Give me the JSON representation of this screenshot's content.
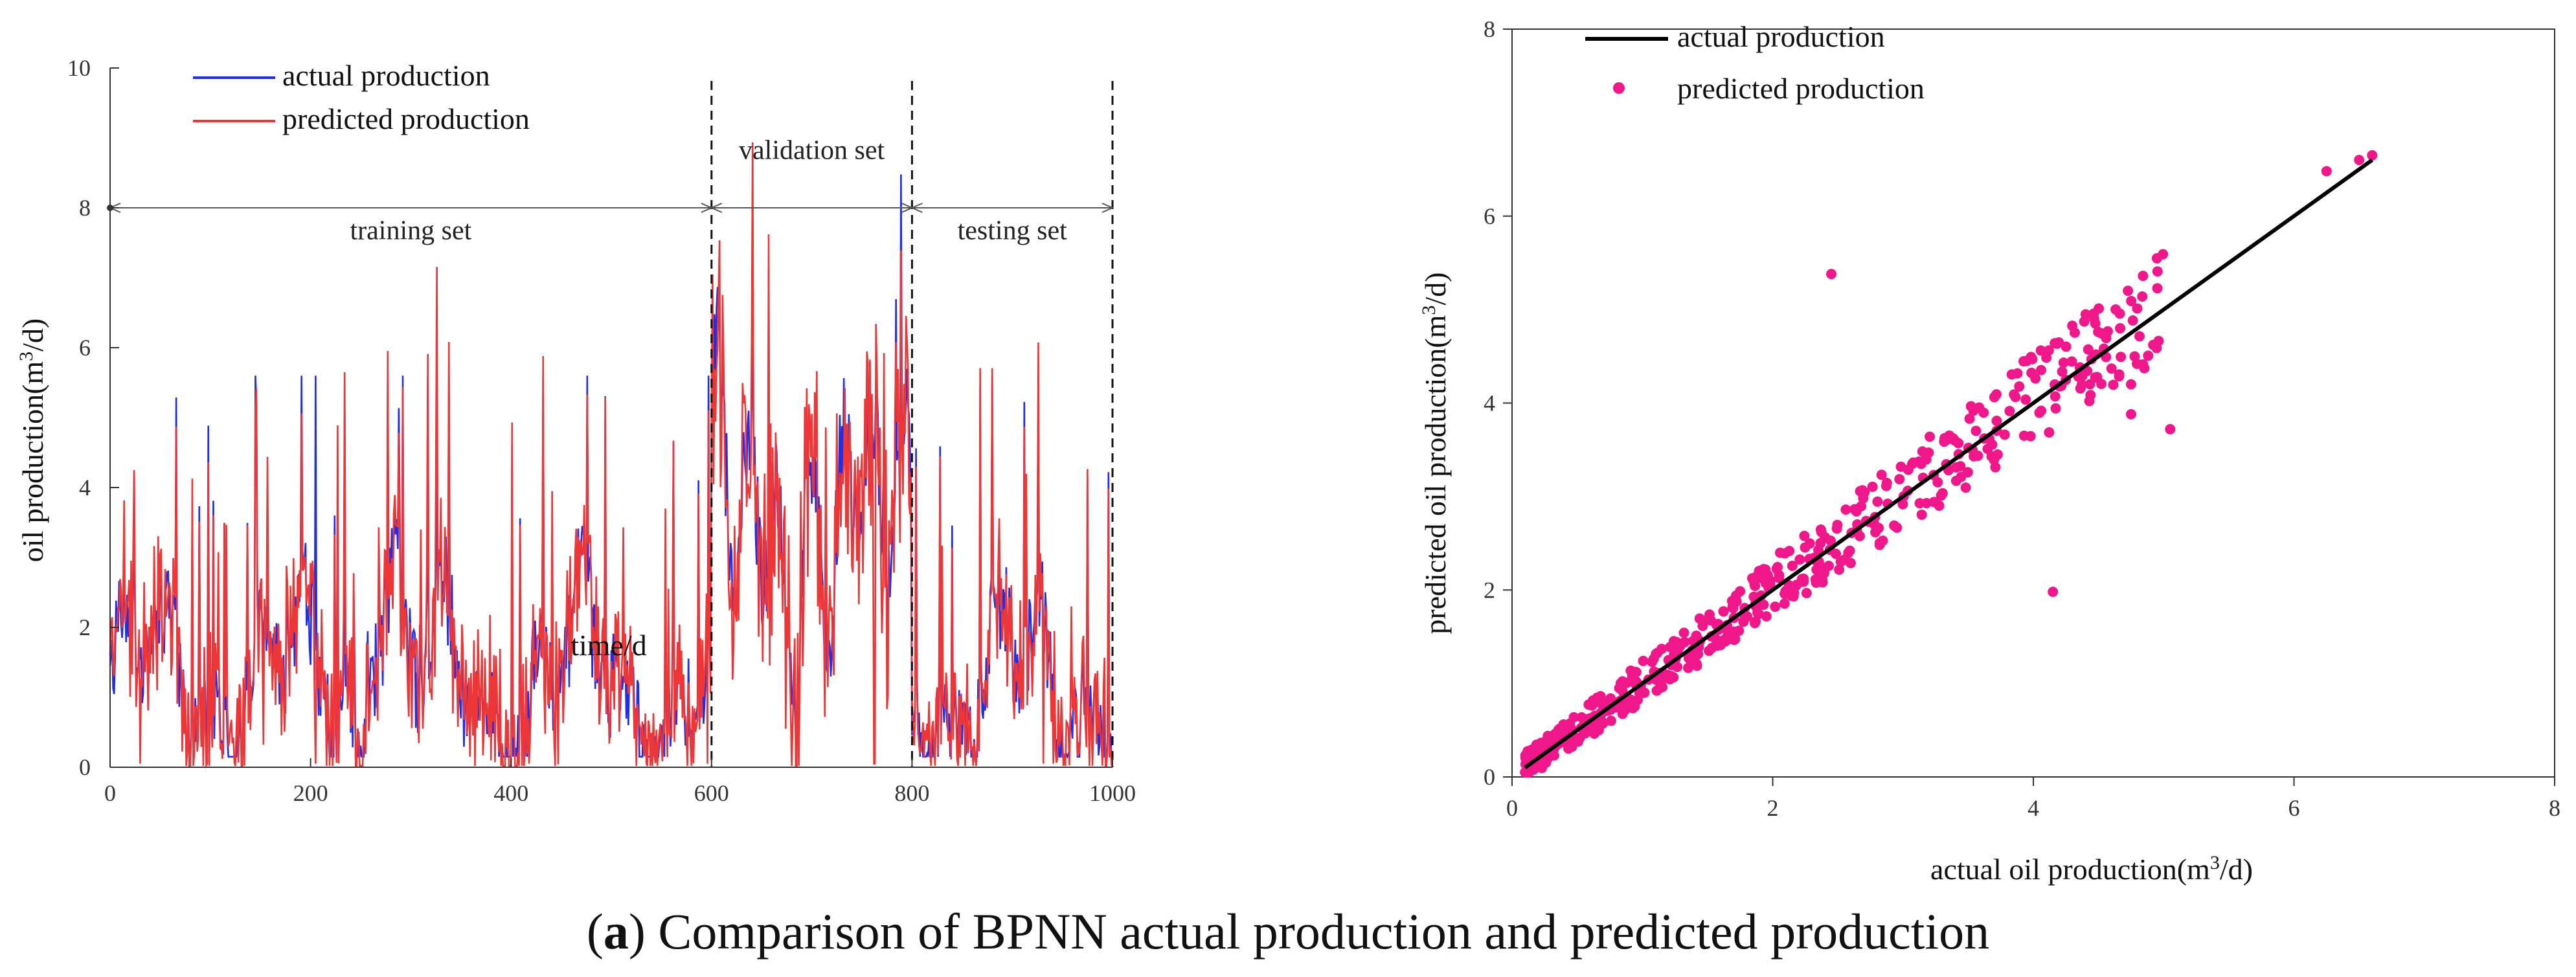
{
  "caption": {
    "label": "a",
    "text": "Comparison of BPNN actual production and predicted production"
  },
  "colors": {
    "actual": "#1f2ee8",
    "predicted": "#ee3636",
    "scatter": "#f0178a",
    "line": "#000000",
    "axis": "#333333"
  },
  "chart_data": [
    {
      "type": "line",
      "xlabel": "time/d",
      "ylabel_main": "oil production(m",
      "ylabel_sup": "3",
      "ylabel_end": "/d)",
      "xlim": [
        0,
        1000
      ],
      "ylim": [
        0,
        10
      ],
      "xticks": [
        "0",
        "200",
        "400",
        "600",
        "800",
        "1000"
      ],
      "yticks": [
        "0",
        "2",
        "4",
        "6",
        "8",
        "10"
      ],
      "legend": [
        "actual production",
        "predicted production"
      ],
      "splits": [
        600,
        800,
        1000
      ],
      "regions": [
        {
          "label": "training set",
          "from": 0,
          "to": 600,
          "label_x": 300,
          "label_y": 7.55
        },
        {
          "label": "validation set",
          "from": 600,
          "to": 800,
          "label_x": 700,
          "label_y": 8.7
        },
        {
          "label": "testing set",
          "from": 800,
          "to": 1000,
          "label_x": 900,
          "label_y": 7.55
        }
      ],
      "arrow_y": 8,
      "series": [
        {
          "name": "actual production",
          "generated": true,
          "points": 1000
        },
        {
          "name": "predicted production",
          "generated": true,
          "points": 1000
        }
      ]
    },
    {
      "type": "scatter",
      "xlabel_main": "actual oil production(m",
      "xlabel_sup": "3",
      "xlabel_end": "/d)",
      "ylabel_main": "predicted oil production(m",
      "ylabel_sup": "3",
      "ylabel_end": "/d)",
      "xlim": [
        0,
        8
      ],
      "ylim": [
        0,
        8
      ],
      "xticks": [
        "0",
        "2",
        "4",
        "6",
        "8"
      ],
      "yticks": [
        "0",
        "2",
        "4",
        "6",
        "8"
      ],
      "legend": [
        "actual production",
        "predicted production"
      ],
      "fit_line": {
        "x": [
          0.1,
          6.6
        ],
        "y": [
          0.1,
          6.6
        ]
      },
      "outliers": [
        [
          2.45,
          5.38
        ],
        [
          4.15,
          1.98
        ],
        [
          5.05,
          3.72
        ],
        [
          4.75,
          3.88
        ],
        [
          6.25,
          6.48
        ],
        [
          6.6,
          6.65
        ],
        [
          6.5,
          6.6
        ],
        [
          4.75,
          4.2
        ]
      ]
    }
  ]
}
